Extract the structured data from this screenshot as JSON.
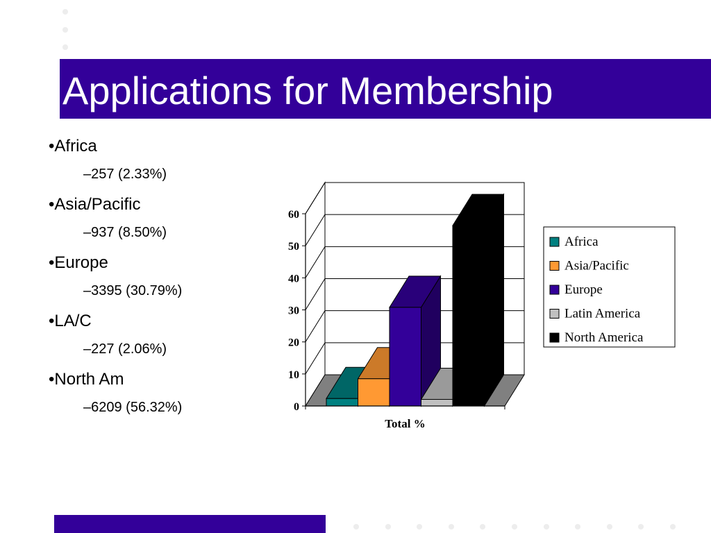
{
  "slide": {
    "title": "Applications for Membership",
    "colors": {
      "title_band": "#330099",
      "title_text": "#ffffff",
      "footer_bar": "#330099"
    }
  },
  "bullets": [
    {
      "label": "•Africa",
      "detail": "–257 (2.33%)"
    },
    {
      "label": "•Asia/Pacific",
      "detail": "–937 (8.50%)"
    },
    {
      "label": "•Europe",
      "detail": "–3395 (30.79%)"
    },
    {
      "label": "•LA/C",
      "detail": "–227 (2.06%)"
    },
    {
      "label": "•North Am",
      "detail": "–6209 (56.32%)"
    }
  ],
  "chart_data": {
    "type": "bar",
    "style": "3d-clustered-column",
    "categories": [
      "Total %"
    ],
    "series": [
      {
        "name": "Africa",
        "values": [
          2.33
        ],
        "color": "#008080"
      },
      {
        "name": "Asia/Pacific",
        "values": [
          8.5
        ],
        "color": "#ff9933"
      },
      {
        "name": "Europe",
        "values": [
          30.79
        ],
        "color": "#330099"
      },
      {
        "name": "Latin America",
        "values": [
          2.06
        ],
        "color": "#c0c0c0"
      },
      {
        "name": "North America",
        "values": [
          56.32
        ],
        "color": "#000000"
      }
    ],
    "ylim": [
      0,
      60
    ],
    "yticks": [
      0,
      10,
      20,
      30,
      40,
      50,
      60
    ],
    "grid": true,
    "legend": "right",
    "title": "",
    "xlabel": "",
    "ylabel": ""
  }
}
